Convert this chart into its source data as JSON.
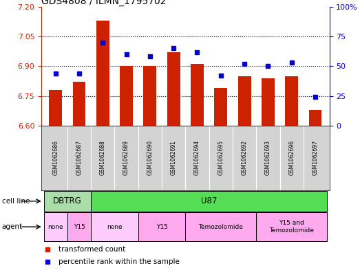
{
  "title": "GDS4808 / ILMN_1795702",
  "samples": [
    "GSM1062686",
    "GSM1062687",
    "GSM1062688",
    "GSM1062689",
    "GSM1062690",
    "GSM1062691",
    "GSM1062694",
    "GSM1062695",
    "GSM1062692",
    "GSM1062693",
    "GSM1062696",
    "GSM1062697"
  ],
  "bar_values": [
    6.78,
    6.82,
    7.13,
    6.9,
    6.9,
    6.97,
    6.91,
    6.79,
    6.85,
    6.84,
    6.85,
    6.68
  ],
  "scatter_values": [
    44,
    44,
    70,
    60,
    58,
    65,
    62,
    42,
    52,
    50,
    53,
    24
  ],
  "bar_bottom": 6.6,
  "ylim_left": [
    6.6,
    7.2
  ],
  "ylim_right": [
    0,
    100
  ],
  "yticks_left": [
    6.6,
    6.75,
    6.9,
    7.05,
    7.2
  ],
  "yticks_right": [
    0,
    25,
    50,
    75,
    100
  ],
  "ytick_right_labels": [
    "0",
    "25",
    "50",
    "75",
    "100%"
  ],
  "bar_color": "#cc2200",
  "scatter_color": "#0000cc",
  "grid_yticks": [
    6.75,
    6.9,
    7.05
  ],
  "cell_line_groups": [
    {
      "label": "DBTRG",
      "start": 0,
      "end": 1,
      "color": "#aaddaa"
    },
    {
      "label": "U87",
      "start": 2,
      "end": 11,
      "color": "#66dd66"
    }
  ],
  "agent_groups": [
    {
      "label": "none",
      "start": 0,
      "end": 0,
      "color": "#ffccff"
    },
    {
      "label": "Y15",
      "start": 1,
      "end": 1,
      "color": "#ffaaff"
    },
    {
      "label": "none",
      "start": 2,
      "end": 3,
      "color": "#ffccff"
    },
    {
      "label": "Y15",
      "start": 4,
      "end": 5,
      "color": "#ffaaff"
    },
    {
      "label": "Temozolomide",
      "start": 6,
      "end": 8,
      "color": "#ffaaff"
    },
    {
      "label": "Y15 and\nTemozolomide",
      "start": 9,
      "end": 11,
      "color": "#ffaaff"
    }
  ],
  "legend_items": [
    {
      "label": "transformed count",
      "color": "#cc2200"
    },
    {
      "label": "percentile rank within the sample",
      "color": "#0000cc"
    }
  ],
  "bg_color": "#ffffff",
  "gray_color": "#d3d3d3",
  "cell_line_label": "cell line",
  "agent_label": "agent"
}
